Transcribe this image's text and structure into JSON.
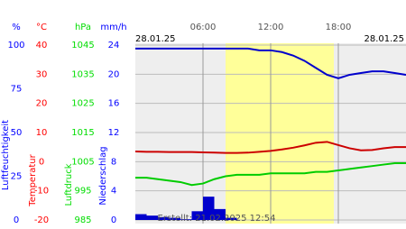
{
  "chart_data": {
    "type": "weather",
    "date_left": "28.01.25",
    "date_right": "28.01.25",
    "footer": "Erstellt: 21.02.2025 12:54",
    "xlim": [
      0,
      24
    ],
    "xticks": [
      {
        "value": 6,
        "label": "06:00"
      },
      {
        "value": 12,
        "label": "12:00"
      },
      {
        "value": 18,
        "label": "18:00"
      }
    ],
    "daylight": [
      8,
      17.6
    ],
    "y_axes": [
      {
        "unit": "%",
        "label": "Luftfeuchtigkeit",
        "color": "#0000ff",
        "lim": [
          0,
          100
        ],
        "ticks": [
          0,
          25,
          50,
          75,
          100
        ]
      },
      {
        "unit": "°C",
        "label": "Temperatur",
        "color": "#ff0000",
        "lim": [
          -20,
          40
        ],
        "ticks": [
          -20,
          -10,
          0,
          10,
          20,
          30,
          40
        ]
      },
      {
        "unit": "hPa",
        "label": "Luftdruck",
        "color": "#00dd00",
        "lim": [
          985,
          1045
        ],
        "ticks": [
          985,
          995,
          1005,
          1015,
          1025,
          1035,
          1045
        ]
      },
      {
        "unit": "mm/h",
        "label": "Niederschlag",
        "color": "#0000ff",
        "lim": [
          0,
          24
        ],
        "ticks": [
          0,
          4,
          8,
          12,
          16,
          20,
          24
        ]
      }
    ],
    "x": [
      0,
      1,
      2,
      3,
      4,
      5,
      6,
      7,
      8,
      9,
      10,
      11,
      12,
      13,
      14,
      15,
      16,
      17,
      18,
      19,
      20,
      21,
      22,
      23,
      24
    ],
    "series": [
      {
        "axis": 0,
        "color": "#0000cc",
        "values": [
          98,
          98,
          98,
          98,
          98,
          98,
          98,
          98,
          98,
          98,
          98,
          97,
          97,
          96,
          94,
          91,
          87,
          83,
          81,
          83,
          84,
          85,
          85,
          84,
          83
        ]
      },
      {
        "axis": 1,
        "color": "#cc0000",
        "values": [
          3.5,
          3.4,
          3.4,
          3.3,
          3.3,
          3.3,
          3.2,
          3.1,
          3.0,
          3.0,
          3.1,
          3.4,
          3.7,
          4.2,
          4.8,
          5.6,
          6.5,
          6.8,
          5.7,
          4.6,
          3.9,
          4.0,
          4.6,
          5.0,
          5.0
        ]
      },
      {
        "axis": 2,
        "color": "#00cc00",
        "values": [
          999.5,
          999.5,
          999,
          998.5,
          998,
          997,
          997.5,
          999,
          1000,
          1000.5,
          1000.5,
          1000.5,
          1001,
          1001,
          1001,
          1001,
          1001.5,
          1001.5,
          1002,
          1002.5,
          1003,
          1003.5,
          1004,
          1004.5,
          1004.5
        ]
      }
    ],
    "precipitation": {
      "axis": 3,
      "color": "#0000cc",
      "bins": [
        0,
        1,
        2,
        3,
        4,
        5,
        6,
        7,
        8,
        9,
        10,
        11,
        12,
        13,
        14,
        15,
        16,
        17,
        18,
        19,
        20,
        21,
        22,
        23,
        24
      ],
      "values": [
        0.8,
        0.6,
        0.4,
        0.3,
        0.1,
        1.2,
        3.2,
        1.5,
        0.3,
        0,
        0,
        0,
        0,
        0,
        0,
        0,
        0,
        0,
        0,
        0,
        0,
        0,
        0,
        0
      ]
    }
  }
}
